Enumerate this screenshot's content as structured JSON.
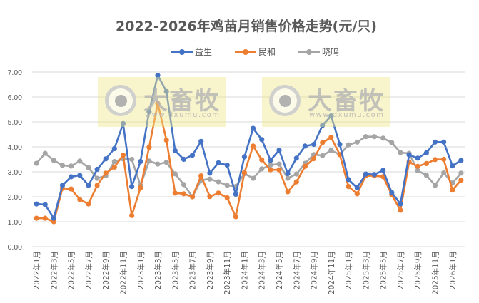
{
  "chart_data": {
    "type": "line",
    "title": "2022-2026年鸡苗月销售价格走势(元/只)",
    "xlabel": "",
    "ylabel": "",
    "ylim": [
      0,
      7
    ],
    "yticks": [
      "0.00",
      "1.00",
      "2.00",
      "3.00",
      "4.00",
      "5.00",
      "6.00",
      "7.00"
    ],
    "grid": true,
    "legend_position": "top",
    "x": [
      "2022年1月",
      "2022年2月",
      "2022年3月",
      "2022年4月",
      "2022年5月",
      "2022年6月",
      "2022年7月",
      "2022年8月",
      "2022年9月",
      "2022年10月",
      "2022年11月",
      "2022年12月",
      "2023年1月",
      "2023年2月",
      "2023年3月",
      "2023年4月",
      "2023年5月",
      "2023年6月",
      "2023年7月",
      "2023年8月",
      "2023年9月",
      "2023年10月",
      "2023年11月",
      "2023年12月",
      "2024年1月",
      "2024年2月",
      "2024年3月",
      "2024年4月",
      "2024年5月",
      "2024年6月",
      "2024年7月",
      "2024年8月",
      "2024年9月",
      "2024年10月",
      "2024年11月",
      "2024年12月",
      "2025年1月",
      "2025年2月",
      "2025年3月",
      "2025年4月",
      "2025年5月",
      "2025年6月",
      "2025年7月",
      "2025年8月",
      "2025年9月",
      "2025年10月",
      "2025年11月",
      "2025年12月",
      "2026年1月",
      "2026年2月"
    ],
    "xtick_labels": [
      "2022年1月",
      "2022年3月",
      "2022年5月",
      "2022年7月",
      "2022年9月",
      "2022年11月",
      "2023年1月",
      "2023年3月",
      "2023年5月",
      "2023年7月",
      "2023年9月",
      "2023年11月",
      "2024年1月",
      "2024年3月",
      "2024年5月",
      "2024年7月",
      "2024年9月",
      "2024年11月",
      "2025年1月",
      "2025年3月",
      "2025年5月",
      "2025年7月",
      "2025年9月",
      "2025年11月",
      "2026年1月"
    ],
    "series": [
      {
        "name": "益生",
        "color": "#4472C4",
        "values": [
          1.71,
          1.69,
          1.14,
          2.46,
          2.8,
          2.86,
          2.46,
          3.1,
          3.52,
          3.93,
          4.93,
          2.41,
          3.41,
          5.41,
          6.87,
          6.22,
          3.85,
          3.5,
          3.67,
          4.22,
          2.95,
          3.36,
          3.27,
          2.1,
          3.6,
          4.74,
          4.29,
          3.46,
          3.87,
          2.93,
          3.55,
          4.03,
          4.1,
          4.86,
          5.24,
          4.1,
          2.69,
          2.36,
          2.91,
          2.89,
          3.06,
          2.17,
          1.71,
          3.68,
          3.55,
          3.76,
          4.19,
          4.19,
          3.24,
          3.46
        ]
      },
      {
        "name": "民和",
        "color": "#ED7D31",
        "values": [
          1.14,
          1.14,
          1.0,
          2.34,
          2.31,
          1.89,
          1.71,
          2.46,
          2.95,
          3.19,
          3.67,
          1.25,
          2.36,
          3.98,
          5.74,
          4.27,
          2.15,
          2.12,
          2.0,
          2.84,
          2.01,
          2.15,
          1.96,
          1.2,
          2.97,
          4.03,
          3.48,
          3.08,
          3.08,
          2.2,
          2.6,
          3.22,
          3.53,
          4.17,
          4.38,
          3.69,
          2.41,
          2.12,
          2.84,
          2.84,
          2.81,
          2.08,
          1.46,
          3.39,
          3.22,
          3.33,
          3.49,
          3.5,
          2.27,
          2.67
        ]
      },
      {
        "name": "晓鸣",
        "color": "#A5A5A5",
        "values": [
          3.34,
          3.74,
          3.46,
          3.26,
          3.23,
          3.43,
          3.17,
          2.74,
          2.84,
          3.41,
          3.52,
          3.5,
          2.46,
          3.43,
          3.31,
          3.38,
          2.92,
          2.49,
          2.0,
          2.67,
          2.71,
          2.6,
          2.46,
          2.41,
          2.93,
          2.74,
          3.12,
          3.27,
          3.31,
          2.74,
          2.91,
          3.34,
          3.69,
          3.65,
          3.86,
          3.69,
          4.08,
          4.19,
          4.41,
          4.41,
          4.35,
          4.17,
          3.77,
          3.74,
          3.05,
          2.86,
          2.46,
          2.96,
          2.55,
          2.95
        ]
      }
    ],
    "annotations": [
      "大畜牧 www.dxumu.com (watermark)",
      "大畜牧 www.dxumu.com (watermark)"
    ]
  },
  "watermark": {
    "brand": "大畜牧",
    "url": "www.dxumu.com"
  }
}
